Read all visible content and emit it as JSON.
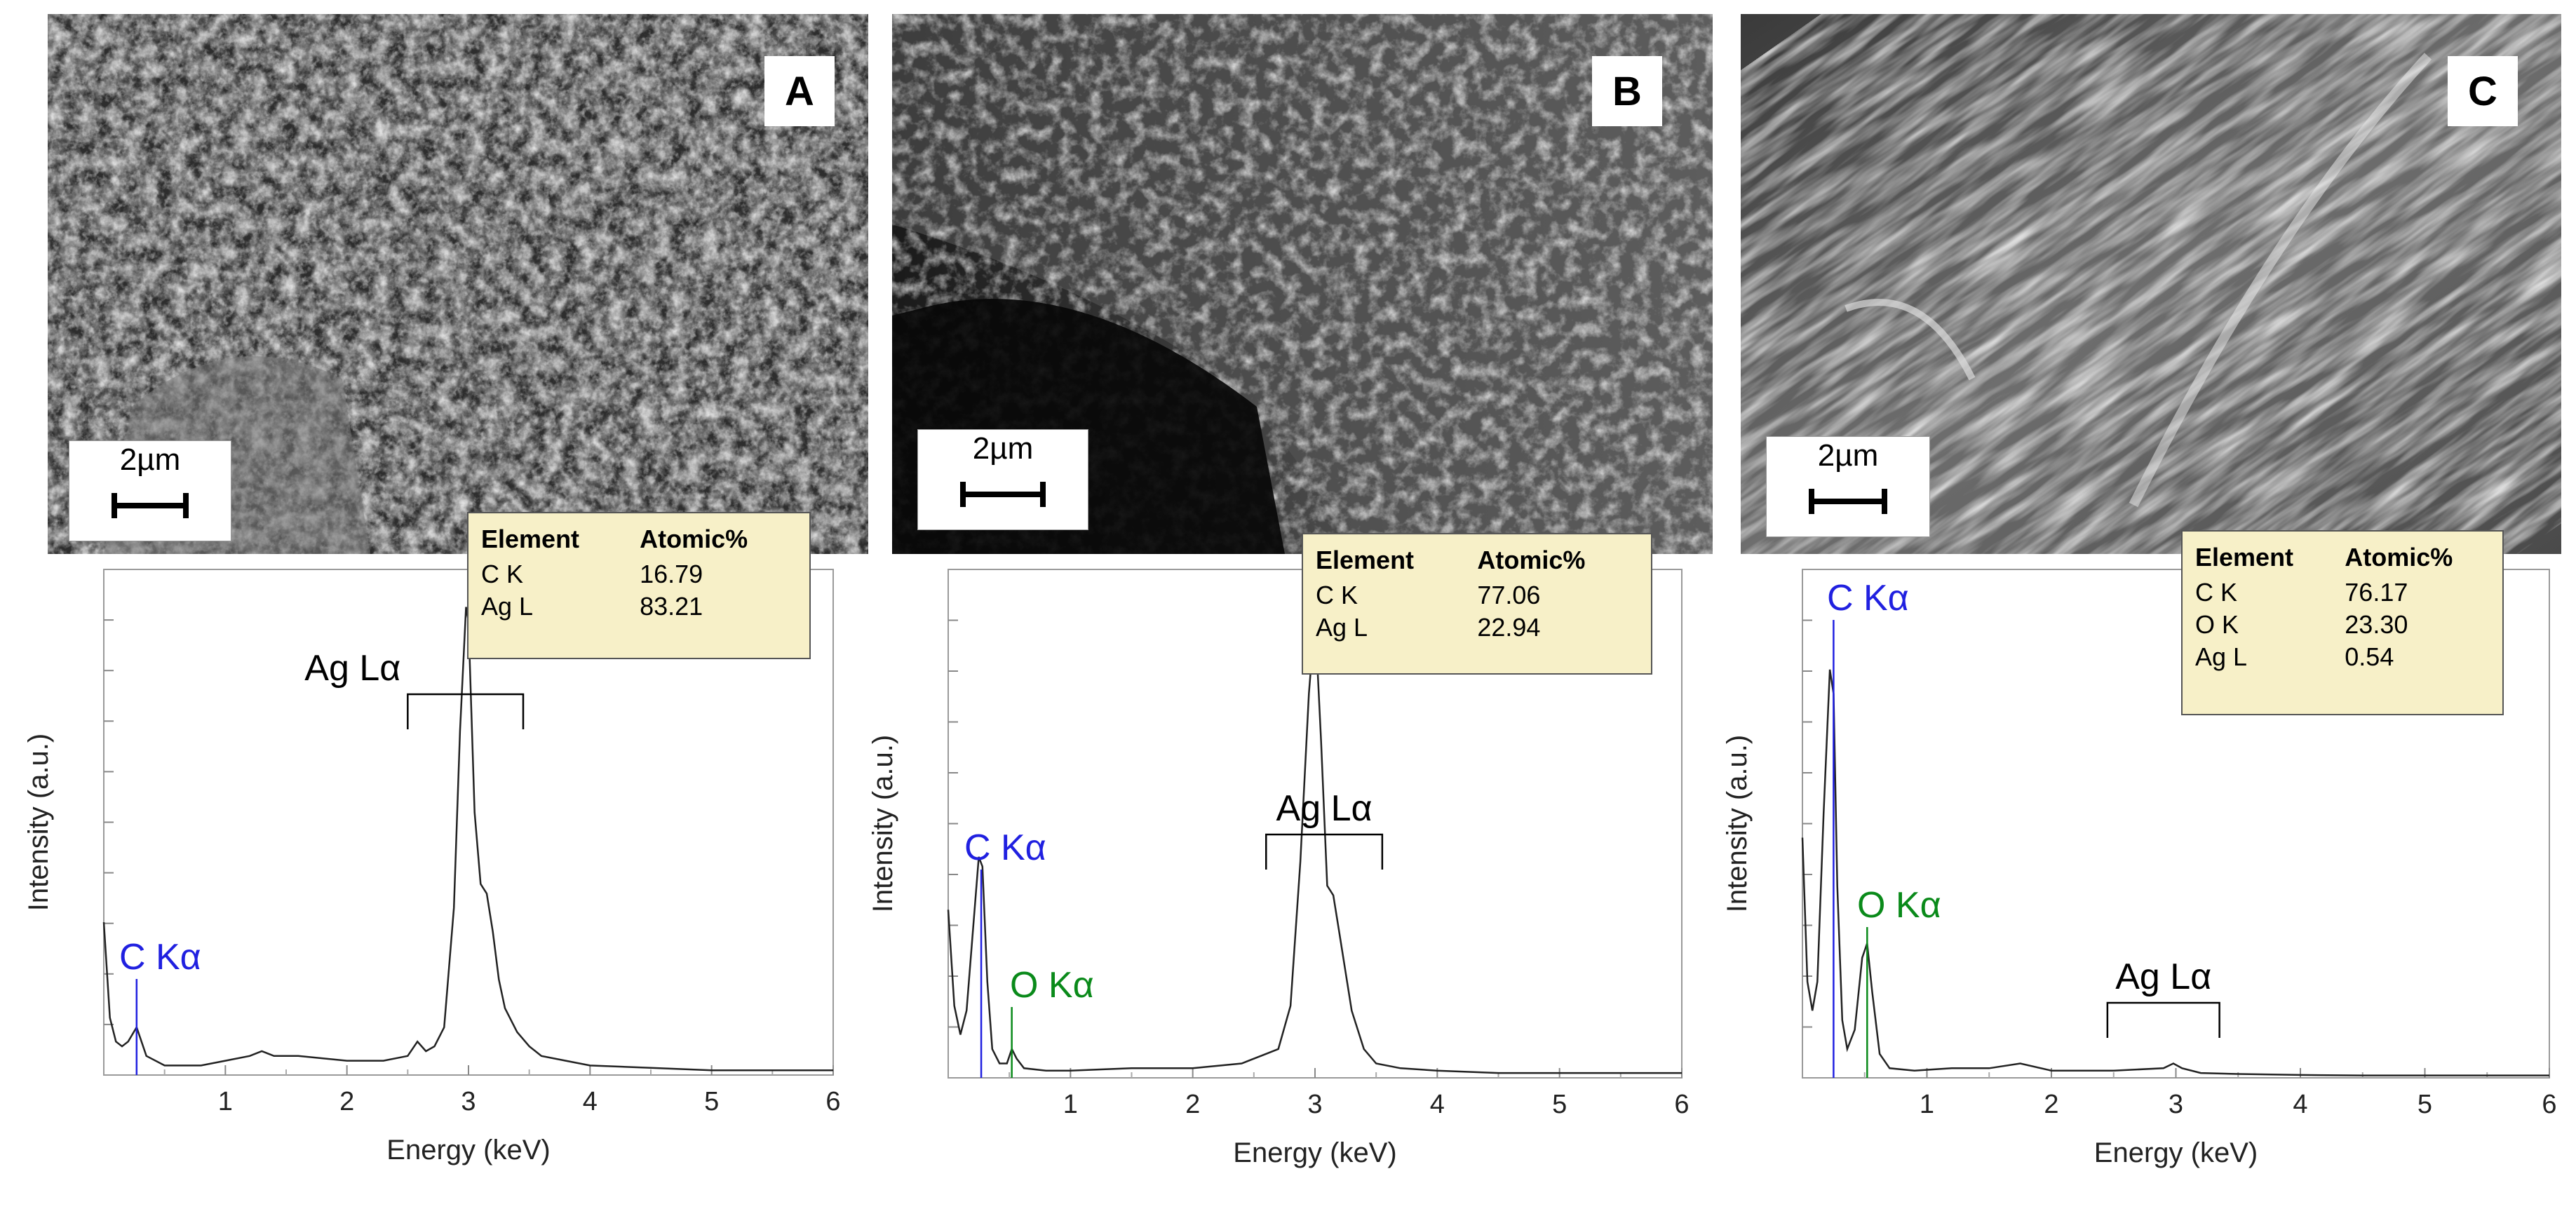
{
  "colors": {
    "carbon": "#2020e0",
    "oxygen": "#0a8a1a",
    "silver": "#000000",
    "table_bg": "#f7f0c8",
    "spectrum_line": "#222222"
  },
  "panels": [
    {
      "letter": "A",
      "scale_bar": "2µm",
      "table": {
        "headers": [
          "Element",
          "Atomic%"
        ],
        "rows": [
          [
            "C K",
            "16.79"
          ],
          [
            "Ag L",
            "83.21"
          ]
        ]
      },
      "peak_labels": [
        {
          "text": "C Kα",
          "element": "carbon"
        },
        {
          "text": "Ag Lα",
          "element": "silver"
        }
      ]
    },
    {
      "letter": "B",
      "scale_bar": "2µm",
      "table": {
        "headers": [
          "Element",
          "Atomic%"
        ],
        "rows": [
          [
            "C K",
            "77.06"
          ],
          [
            "Ag L",
            "22.94"
          ]
        ]
      },
      "peak_labels": [
        {
          "text": "C Kα",
          "element": "carbon"
        },
        {
          "text": "O Kα",
          "element": "oxygen"
        },
        {
          "text": "Ag Lα",
          "element": "silver"
        }
      ]
    },
    {
      "letter": "C",
      "scale_bar": "2µm",
      "table": {
        "headers": [
          "Element",
          "Atomic%"
        ],
        "rows": [
          [
            "C K",
            "76.17"
          ],
          [
            "O K",
            "23.30"
          ],
          [
            "Ag L",
            "0.54"
          ]
        ]
      },
      "peak_labels": [
        {
          "text": "C Kα",
          "element": "carbon"
        },
        {
          "text": "O Kα",
          "element": "oxygen"
        },
        {
          "text": "Ag Lα",
          "element": "silver"
        }
      ]
    }
  ],
  "chart_data": [
    {
      "type": "line",
      "xlabel": "Energy (keV)",
      "ylabel": "Intensity (a.u.)",
      "xlim": [
        0,
        6
      ],
      "ylim": [
        0,
        1
      ],
      "xticks": [
        "1",
        "2",
        "3",
        "4",
        "5",
        "6"
      ],
      "grid": false,
      "series": [
        {
          "x": [
            0.0,
            0.05,
            0.1,
            0.15,
            0.2,
            0.27,
            0.35,
            0.5,
            0.8,
            1.0,
            1.2,
            1.3,
            1.4,
            1.6,
            2.0,
            2.3,
            2.5,
            2.58,
            2.65,
            2.72,
            2.8,
            2.88,
            2.93,
            2.98,
            3.0,
            3.05,
            3.1,
            3.15,
            3.2,
            3.25,
            3.3,
            3.4,
            3.5,
            3.6,
            3.8,
            4.0,
            4.5,
            5.0,
            5.5,
            6.0
          ],
          "y": [
            0.32,
            0.12,
            0.07,
            0.06,
            0.07,
            0.1,
            0.04,
            0.02,
            0.02,
            0.03,
            0.04,
            0.05,
            0.04,
            0.04,
            0.03,
            0.03,
            0.04,
            0.07,
            0.05,
            0.06,
            0.1,
            0.35,
            0.72,
            0.98,
            0.95,
            0.55,
            0.4,
            0.38,
            0.3,
            0.2,
            0.14,
            0.09,
            0.06,
            0.04,
            0.03,
            0.02,
            0.015,
            0.01,
            0.01,
            0.01
          ]
        }
      ],
      "annotations": [
        {
          "text": "C Kα",
          "x": 0.27,
          "color": "carbon",
          "type": "line"
        },
        {
          "text": "Ag Lα",
          "x_range": [
            2.5,
            3.45
          ],
          "color": "silver",
          "type": "bracket"
        }
      ]
    },
    {
      "type": "line",
      "xlabel": "Energy (keV)",
      "ylabel": "Intensity (a.u.)",
      "xlim": [
        0,
        6
      ],
      "ylim": [
        0,
        1
      ],
      "xticks": [
        "1",
        "2",
        "3",
        "4",
        "5",
        "6"
      ],
      "grid": false,
      "series": [
        {
          "x": [
            0.0,
            0.05,
            0.1,
            0.15,
            0.2,
            0.25,
            0.28,
            0.32,
            0.36,
            0.42,
            0.48,
            0.52,
            0.56,
            0.62,
            0.8,
            1.0,
            1.5,
            2.0,
            2.4,
            2.6,
            2.7,
            2.8,
            2.88,
            2.95,
            3.0,
            3.05,
            3.1,
            3.15,
            3.2,
            3.3,
            3.4,
            3.5,
            3.7,
            4.0,
            4.5,
            5.0,
            5.5,
            6.0
          ],
          "y": [
            0.35,
            0.15,
            0.09,
            0.14,
            0.3,
            0.46,
            0.44,
            0.2,
            0.06,
            0.03,
            0.03,
            0.06,
            0.04,
            0.02,
            0.015,
            0.015,
            0.02,
            0.02,
            0.03,
            0.05,
            0.06,
            0.15,
            0.45,
            0.8,
            0.96,
            0.7,
            0.4,
            0.38,
            0.3,
            0.14,
            0.06,
            0.03,
            0.02,
            0.015,
            0.01,
            0.01,
            0.01,
            0.01
          ]
        }
      ],
      "annotations": [
        {
          "text": "C Kα",
          "x": 0.27,
          "color": "carbon",
          "type": "line"
        },
        {
          "text": "O Kα",
          "x": 0.52,
          "color": "oxygen",
          "type": "line"
        },
        {
          "text": "Ag Lα",
          "x_range": [
            2.6,
            3.55
          ],
          "color": "silver",
          "type": "bracket"
        }
      ]
    },
    {
      "type": "line",
      "xlabel": "Energy (keV)",
      "ylabel": "Intensity (a.u.)",
      "xlim": [
        0,
        6
      ],
      "ylim": [
        0,
        1
      ],
      "xticks": [
        "1",
        "2",
        "3",
        "4",
        "5",
        "6"
      ],
      "grid": false,
      "series": [
        {
          "x": [
            0.0,
            0.04,
            0.08,
            0.12,
            0.17,
            0.22,
            0.25,
            0.28,
            0.32,
            0.36,
            0.42,
            0.48,
            0.52,
            0.56,
            0.62,
            0.7,
            0.9,
            1.2,
            1.5,
            1.75,
            2.0,
            2.5,
            2.9,
            2.98,
            3.05,
            3.2,
            3.5,
            4.0,
            4.5,
            5.0,
            5.5,
            6.0
          ],
          "y": [
            0.5,
            0.2,
            0.14,
            0.2,
            0.55,
            0.85,
            0.8,
            0.4,
            0.12,
            0.06,
            0.1,
            0.25,
            0.28,
            0.18,
            0.05,
            0.02,
            0.015,
            0.02,
            0.02,
            0.03,
            0.015,
            0.015,
            0.02,
            0.03,
            0.02,
            0.01,
            0.008,
            0.006,
            0.005,
            0.005,
            0.005,
            0.005
          ]
        }
      ],
      "annotations": [
        {
          "text": "C Kα",
          "x": 0.25,
          "color": "carbon",
          "type": "line"
        },
        {
          "text": "O Kα",
          "x": 0.52,
          "color": "oxygen",
          "type": "line"
        },
        {
          "text": "Ag Lα",
          "x_range": [
            2.45,
            3.35
          ],
          "color": "silver",
          "type": "bracket"
        }
      ]
    }
  ]
}
